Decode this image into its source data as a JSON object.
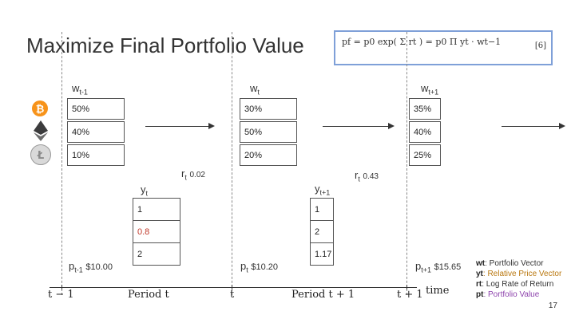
{
  "title": "Maximize Final Portfolio Value",
  "formula": {
    "text": "pf = p0 exp( Σ rt ) = p0 Π yt · wt−1",
    "tag": "[6]"
  },
  "weights": {
    "w_prev": {
      "base": "w",
      "sub": "t-1",
      "values": [
        "50%",
        "40%",
        "10%"
      ]
    },
    "w_curr": {
      "base": "w",
      "sub": "t",
      "values": [
        "30%",
        "50%",
        "20%"
      ]
    },
    "w_next": {
      "base": "w",
      "sub": "t+1",
      "values": [
        "35%",
        "40%",
        "25%"
      ]
    }
  },
  "price_vectors": {
    "y_t": {
      "base": "y",
      "sub": "t",
      "values": [
        "1",
        "0.8",
        "2"
      ]
    },
    "y_next": {
      "base": "y",
      "sub": "t+1",
      "values": [
        "1",
        "2",
        "1.17"
      ]
    }
  },
  "returns": {
    "r_t": {
      "base": "r",
      "sub": "t",
      "value": "0.02"
    },
    "r_next": {
      "base": "r",
      "sub": "t",
      "value": "0.43"
    }
  },
  "portfolio_values": {
    "p_prev": {
      "base": "p",
      "sub": "t-1",
      "value": "$10.00"
    },
    "p_curr": {
      "base": "p",
      "sub": "t",
      "value": "$10.20"
    },
    "p_next": {
      "base": "p",
      "sub": "t+1",
      "value": "$15.65"
    }
  },
  "timeline": {
    "t_minus_1": "t − 1",
    "period_t": "Period t",
    "t": "t",
    "period_t_plus_1": "Period t + 1",
    "t_plus_1": "t + 1",
    "time": "time"
  },
  "legend": [
    {
      "key": "wt",
      "desc": ": Portfolio Vector"
    },
    {
      "key": "yt",
      "desc": ": Relative Price Vector"
    },
    {
      "key": "rt",
      "desc": ": Log Rate of Return"
    },
    {
      "key": "pt",
      "desc": ": Portfolio Value"
    }
  ],
  "page_number": "17",
  "colors": {
    "bitcoin": "#f7931a",
    "ethereum": "#3c3c3d",
    "litecoin": "#bfbfbf",
    "formula_border": "#7fa0d8",
    "decrease": "#c0392b",
    "increase": "#2e7d32"
  },
  "icons": [
    "bitcoin-icon",
    "ethereum-icon",
    "litecoin-icon"
  ]
}
